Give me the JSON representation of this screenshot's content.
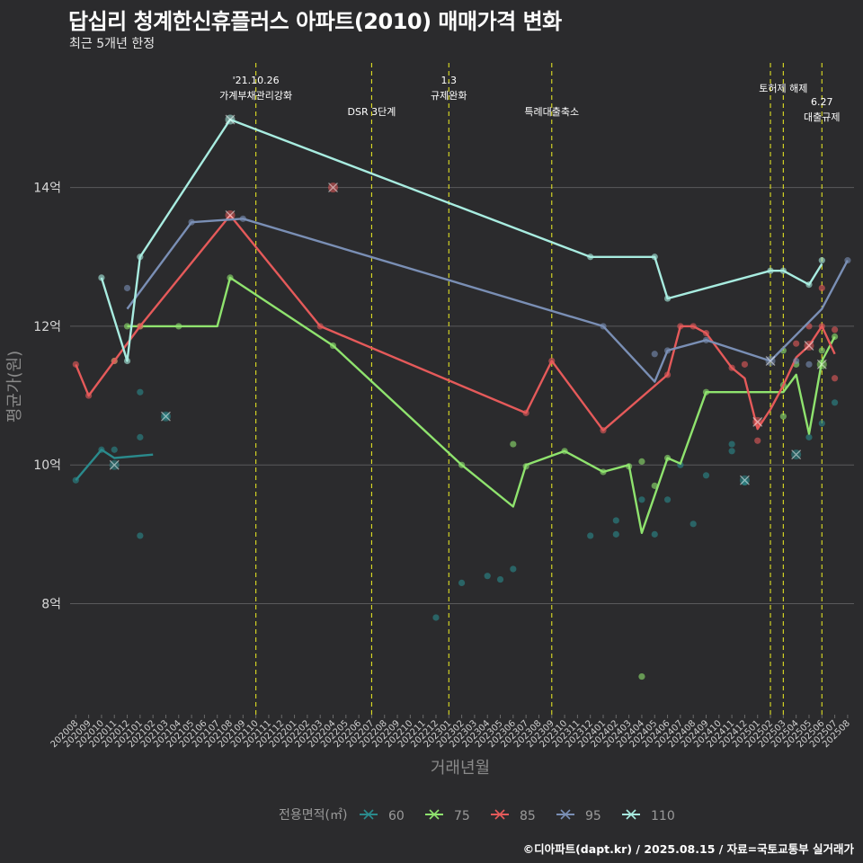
{
  "chart_data": {
    "type": "line",
    "title": "답십리 청계한신휴플러스 아파트(2010) 매매가격 변화",
    "subtitle": "최근 5개년 한정",
    "xlabel": "거래년월",
    "ylabel": "평균가(원)",
    "caption": "©디아파트(dapt.kr) / 2025.08.15 / 자료=국토교통부 실거래가",
    "legend_title": "전용면적(㎡)",
    "legend_position": "bottom",
    "grid": true,
    "y_range_eok": [
      6.4,
      15.9
    ],
    "y_ticks": [
      {
        "value": 8,
        "label": "8억"
      },
      {
        "value": 10,
        "label": "10억"
      },
      {
        "value": 12,
        "label": "12억"
      },
      {
        "value": 14,
        "label": "14억"
      }
    ],
    "x_categories": [
      "202008",
      "202009",
      "202010",
      "202011",
      "202012",
      "202101",
      "202102",
      "202103",
      "202104",
      "202105",
      "202106",
      "202107",
      "202108",
      "202109",
      "202110",
      "202111",
      "202112",
      "202201",
      "202202",
      "202203",
      "202204",
      "202205",
      "202206",
      "202207",
      "202208",
      "202209",
      "202210",
      "202211",
      "202212",
      "202301",
      "202302",
      "202303",
      "202304",
      "202305",
      "202306",
      "202307",
      "202308",
      "202309",
      "202310",
      "202311",
      "202312",
      "202401",
      "202402",
      "202403",
      "202404",
      "202405",
      "202406",
      "202407",
      "202408",
      "202409",
      "202410",
      "202411",
      "202412",
      "202501",
      "202502",
      "202503",
      "202504",
      "202505",
      "202506",
      "202507",
      "202508"
    ],
    "events": [
      {
        "x": "202110",
        "label": "'21.10.26\n가계부채관리강화"
      },
      {
        "x": "202207",
        "label": "DSR 3단계"
      },
      {
        "x": "202301",
        "label": "1.3\n규제완화"
      },
      {
        "x": "202309",
        "label": "특례대출축소"
      },
      {
        "x": "202502",
        "label": ""
      },
      {
        "x": "202503",
        "label": "토허제 해제"
      },
      {
        "x": "202506",
        "label": "6.27\n대출규제"
      }
    ],
    "series": [
      {
        "name": "60",
        "color": "#2a8a8c",
        "line": [
          [
            "202008",
            9.78
          ],
          [
            "202010",
            10.22
          ],
          [
            "202011",
            10.1
          ],
          [
            "202102",
            10.15
          ]
        ],
        "points": [
          [
            "202008",
            9.78
          ],
          [
            "202010",
            10.22
          ],
          [
            "202011",
            10.22
          ],
          [
            "202101",
            11.05
          ],
          [
            "202101",
            10.4
          ],
          [
            "202101",
            8.98
          ],
          [
            "202103",
            10.7
          ],
          [
            "202212",
            7.8
          ],
          [
            "202302",
            8.3
          ],
          [
            "202304",
            8.4
          ],
          [
            "202305",
            8.35
          ],
          [
            "202306",
            8.5
          ],
          [
            "202312",
            8.98
          ],
          [
            "202402",
            9.2
          ],
          [
            "202402",
            9.0
          ],
          [
            "202404",
            9.5
          ],
          [
            "202405",
            9.0
          ],
          [
            "202406",
            9.5
          ],
          [
            "202407",
            10.0
          ],
          [
            "202408",
            9.15
          ],
          [
            "202409",
            9.85
          ],
          [
            "202411",
            10.3
          ],
          [
            "202411",
            10.2
          ],
          [
            "202412",
            9.75
          ],
          [
            "202505",
            10.4
          ],
          [
            "202506",
            10.6
          ],
          [
            "202507",
            10.9
          ]
        ],
        "crosses": [
          [
            "202011",
            10.0
          ],
          [
            "202103",
            10.7
          ],
          [
            "202412",
            9.78
          ],
          [
            "202504",
            10.15
          ]
        ]
      },
      {
        "name": "75",
        "color": "#8fe36e",
        "line": [
          [
            "202012",
            12.0
          ],
          [
            "202104",
            12.0
          ],
          [
            "202107",
            12.0
          ],
          [
            "202108",
            12.7
          ],
          [
            "202204",
            11.72
          ],
          [
            "202302",
            10.0
          ],
          [
            "202306",
            9.4
          ],
          [
            "202307",
            10.0
          ],
          [
            "202310",
            10.2
          ],
          [
            "202401",
            9.9
          ],
          [
            "202403",
            10.0
          ],
          [
            "202404",
            9.02
          ],
          [
            "202406",
            10.1
          ],
          [
            "202407",
            10.02
          ],
          [
            "202409",
            11.05
          ],
          [
            "202502",
            11.05
          ],
          [
            "202503",
            11.05
          ],
          [
            "202504",
            11.3
          ],
          [
            "202505",
            10.45
          ],
          [
            "202506",
            11.5
          ],
          [
            "202507",
            11.85
          ]
        ],
        "points": [
          [
            "202011",
            11.5
          ],
          [
            "202012",
            12.0
          ],
          [
            "202101",
            12.0
          ],
          [
            "202104",
            12.0
          ],
          [
            "202108",
            12.7
          ],
          [
            "202204",
            11.72
          ],
          [
            "202302",
            10.0
          ],
          [
            "202306",
            10.3
          ],
          [
            "202307",
            9.98
          ],
          [
            "202310",
            10.2
          ],
          [
            "202401",
            9.9
          ],
          [
            "202403",
            9.98
          ],
          [
            "202404",
            10.05
          ],
          [
            "202404",
            6.95
          ],
          [
            "202405",
            9.7
          ],
          [
            "202406",
            10.1
          ],
          [
            "202409",
            11.05
          ],
          [
            "202503",
            11.65
          ],
          [
            "202503",
            10.7
          ],
          [
            "202503",
            11.15
          ],
          [
            "202504",
            11.45
          ],
          [
            "202506",
            11.65
          ],
          [
            "202507",
            11.85
          ]
        ],
        "crosses": [
          [
            "202506",
            11.45
          ]
        ]
      },
      {
        "name": "85",
        "color": "#e55a5a",
        "line": [
          [
            "202008",
            11.45
          ],
          [
            "202009",
            11.0
          ],
          [
            "202011",
            11.5
          ],
          [
            "202101",
            12.0
          ],
          [
            "202108",
            13.6
          ],
          [
            "202203",
            12.0
          ],
          [
            "202307",
            10.75
          ],
          [
            "202309",
            11.5
          ],
          [
            "202401",
            10.5
          ],
          [
            "202406",
            11.3
          ],
          [
            "202407",
            12.0
          ],
          [
            "202408",
            12.0
          ],
          [
            "202409",
            11.9
          ],
          [
            "202411",
            11.4
          ],
          [
            "202412",
            11.25
          ],
          [
            "202501",
            10.52
          ],
          [
            "202502",
            10.8
          ],
          [
            "202503",
            11.15
          ],
          [
            "202504",
            11.55
          ],
          [
            "202505",
            11.72
          ],
          [
            "202506",
            12.0
          ],
          [
            "202507",
            11.6
          ]
        ],
        "points": [
          [
            "202008",
            11.45
          ],
          [
            "202009",
            11.0
          ],
          [
            "202011",
            11.5
          ],
          [
            "202101",
            12.0
          ],
          [
            "202203",
            12.0
          ],
          [
            "202307",
            10.75
          ],
          [
            "202309",
            11.5
          ],
          [
            "202401",
            10.5
          ],
          [
            "202406",
            11.3
          ],
          [
            "202407",
            12.0
          ],
          [
            "202408",
            12.0
          ],
          [
            "202409",
            11.9
          ],
          [
            "202411",
            11.4
          ],
          [
            "202412",
            11.45
          ],
          [
            "202501",
            10.35
          ],
          [
            "202501",
            10.6
          ],
          [
            "202504",
            11.75
          ],
          [
            "202505",
            12.0
          ],
          [
            "202506",
            12.55
          ],
          [
            "202506",
            12.0
          ],
          [
            "202507",
            11.95
          ],
          [
            "202507",
            11.25
          ]
        ],
        "crosses": [
          [
            "202108",
            13.6
          ],
          [
            "202204",
            14.0
          ],
          [
            "202501",
            10.62
          ],
          [
            "202505",
            11.72
          ]
        ]
      },
      {
        "name": "95",
        "color": "#7a8fb5",
        "line": [
          [
            "202012",
            12.25
          ],
          [
            "202105",
            13.5
          ],
          [
            "202109",
            13.55
          ],
          [
            "202401",
            12.0
          ],
          [
            "202405",
            11.2
          ],
          [
            "202406",
            11.65
          ],
          [
            "202409",
            11.8
          ],
          [
            "202502",
            11.5
          ],
          [
            "202506",
            12.25
          ],
          [
            "202508",
            12.95
          ]
        ],
        "points": [
          [
            "202012",
            12.55
          ],
          [
            "202105",
            13.5
          ],
          [
            "202109",
            13.55
          ],
          [
            "202401",
            12.0
          ],
          [
            "202405",
            11.6
          ],
          [
            "202406",
            11.65
          ],
          [
            "202409",
            11.8
          ],
          [
            "202504",
            11.5
          ],
          [
            "202505",
            11.45
          ],
          [
            "202508",
            12.95
          ]
        ],
        "crosses": [
          [
            "202502",
            11.5
          ]
        ]
      },
      {
        "name": "110",
        "color": "#a8ece0",
        "line": [
          [
            "202010",
            12.7
          ],
          [
            "202012",
            11.5
          ],
          [
            "202101",
            13.0
          ],
          [
            "202108",
            14.98
          ],
          [
            "202312",
            13.0
          ],
          [
            "202405",
            13.0
          ],
          [
            "202406",
            12.4
          ],
          [
            "202502",
            12.8
          ],
          [
            "202503",
            12.8
          ],
          [
            "202505",
            12.6
          ],
          [
            "202506",
            12.9
          ]
        ],
        "points": [
          [
            "202010",
            12.7
          ],
          [
            "202012",
            11.5
          ],
          [
            "202101",
            13.0
          ],
          [
            "202312",
            13.0
          ],
          [
            "202405",
            13.0
          ],
          [
            "202406",
            12.4
          ],
          [
            "202502",
            12.8
          ],
          [
            "202503",
            12.8
          ],
          [
            "202505",
            12.6
          ],
          [
            "202506",
            12.95
          ]
        ],
        "crosses": [
          [
            "202108",
            14.98
          ]
        ]
      }
    ]
  }
}
